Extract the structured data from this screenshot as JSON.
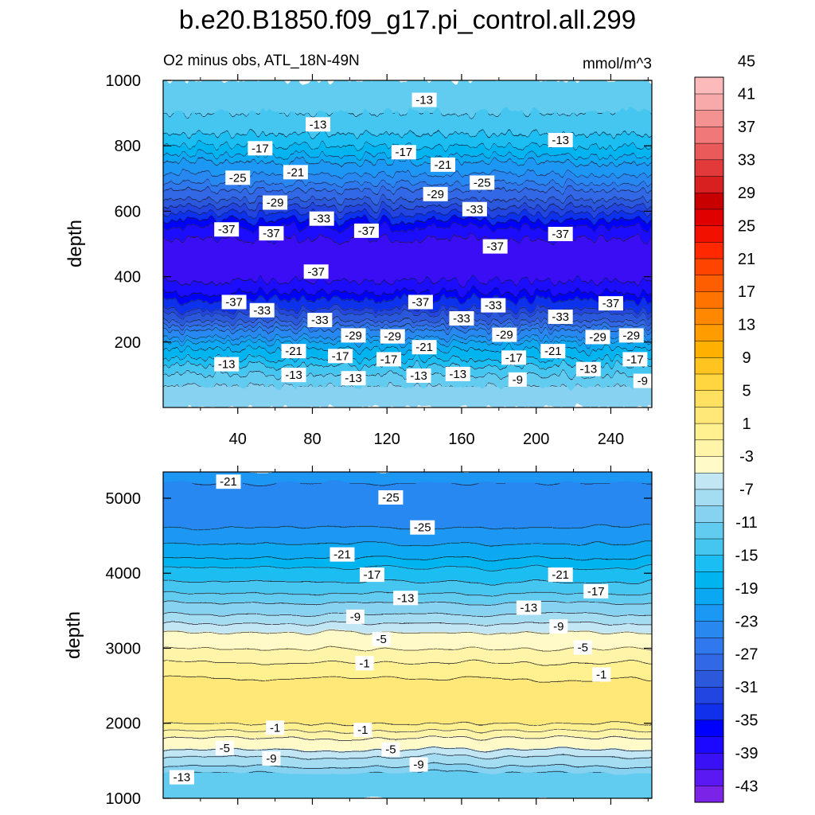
{
  "chart_data": {
    "type": "heatmap",
    "title": "b.e20.B1850.f09_g17.pi_control.all.299",
    "subtitle_left": "O2 minus obs, ATL_18N-49N",
    "subtitle_right": "mmol/m^3",
    "colorbar": {
      "levels": [
        -45,
        -43,
        -41,
        -39,
        -37,
        -35,
        -33,
        -31,
        -29,
        -27,
        -25,
        -23,
        -21,
        -19,
        -17,
        -15,
        -13,
        -11,
        -9,
        -7,
        -5,
        -3,
        -1,
        1,
        3,
        5,
        7,
        9,
        11,
        13,
        15,
        17,
        19,
        21,
        23,
        25,
        27,
        29,
        31,
        33,
        35,
        37,
        39,
        41,
        43,
        45
      ],
      "tick_labels": [
        "45",
        "41",
        "37",
        "33",
        "29",
        "25",
        "21",
        "17",
        "13",
        "9",
        "5",
        "1",
        "-3",
        "-7",
        "-11",
        "-15",
        "-19",
        "-23",
        "-27",
        "-31",
        "-35",
        "-39",
        "-43"
      ],
      "colors": [
        "#7b24e8",
        "#5a18f2",
        "#3a10f5",
        "#1c08ff",
        "#0000ff",
        "#1030ec",
        "#2244e0",
        "#2c58dc",
        "#3068e6",
        "#2f78ee",
        "#2888f0",
        "#1b98f4",
        "#0aa8f2",
        "#00b4f0",
        "#1abef2",
        "#44c6f0",
        "#62ccf0",
        "#86d2f0",
        "#a4dcf2",
        "#c2e6f4",
        "#fffac8",
        "#fff4a8",
        "#fff090",
        "#ffe878",
        "#ffe060",
        "#ffd640",
        "#ffc420",
        "#ffb000",
        "#ff9c00",
        "#ff8800",
        "#ff7400",
        "#ff5e00",
        "#ff4400",
        "#ff2800",
        "#f21000",
        "#e00000",
        "#c80000",
        "#d82020",
        "#e23a3a",
        "#ea5a5a",
        "#f07878",
        "#f49292",
        "#f8aaaa",
        "#fcbaba"
      ]
    },
    "panels": [
      {
        "ylabel": "depth",
        "xlabel": "",
        "xlim": [
          0,
          262
        ],
        "ylim": [
          1000,
          0
        ],
        "xticks": [
          40,
          80,
          120,
          160,
          200,
          240
        ],
        "yticks": [
          200,
          400,
          600,
          800,
          1000
        ],
        "profile": {
          "depth": [
            0,
            50,
            100,
            150,
            200,
            250,
            300,
            350,
            400,
            450,
            500,
            550,
            600,
            650,
            700,
            750,
            800,
            850,
            900,
            1000
          ],
          "value": [
            -9,
            -10,
            -13,
            -17,
            -21,
            -27,
            -33,
            -37,
            -40,
            -41,
            -40,
            -37,
            -32,
            -28,
            -24,
            -21,
            -17,
            -14,
            -13,
            -13
          ]
        },
        "contour_labels": [
          {
            "text": "-13",
            "x": 34,
            "y": 130
          },
          {
            "text": "-13",
            "x": 70,
            "y": 97
          },
          {
            "text": "-13",
            "x": 102,
            "y": 87
          },
          {
            "text": "-13",
            "x": 137,
            "y": 95
          },
          {
            "text": "-13",
            "x": 158,
            "y": 100
          },
          {
            "text": "-9",
            "x": 190,
            "y": 83
          },
          {
            "text": "-13",
            "x": 228,
            "y": 115
          },
          {
            "text": "-9",
            "x": 257,
            "y": 79
          },
          {
            "text": "-21",
            "x": 70,
            "y": 170
          },
          {
            "text": "-17",
            "x": 95,
            "y": 155
          },
          {
            "text": "-17",
            "x": 121,
            "y": 145
          },
          {
            "text": "-21",
            "x": 140,
            "y": 182
          },
          {
            "text": "-17",
            "x": 188,
            "y": 150
          },
          {
            "text": "-21",
            "x": 209,
            "y": 170
          },
          {
            "text": "-17",
            "x": 253,
            "y": 145
          },
          {
            "text": "-29",
            "x": 102,
            "y": 218
          },
          {
            "text": "-29",
            "x": 123,
            "y": 215
          },
          {
            "text": "-33",
            "x": 84,
            "y": 265
          },
          {
            "text": "-29",
            "x": 183,
            "y": 220
          },
          {
            "text": "-29",
            "x": 233,
            "y": 213
          },
          {
            "text": "-29",
            "x": 251,
            "y": 218
          },
          {
            "text": "-37",
            "x": 38,
            "y": 320
          },
          {
            "text": "-33",
            "x": 53,
            "y": 295
          },
          {
            "text": "-37",
            "x": 138,
            "y": 320
          },
          {
            "text": "-33",
            "x": 160,
            "y": 270
          },
          {
            "text": "-33",
            "x": 177,
            "y": 310
          },
          {
            "text": "-33",
            "x": 213,
            "y": 275
          },
          {
            "text": "-37",
            "x": 240,
            "y": 316
          },
          {
            "text": "-37",
            "x": 82,
            "y": 413
          },
          {
            "text": "-37",
            "x": 178,
            "y": 490
          },
          {
            "text": "-37",
            "x": 213,
            "y": 528
          },
          {
            "text": "-37",
            "x": 34,
            "y": 542
          },
          {
            "text": "-37",
            "x": 58,
            "y": 530
          },
          {
            "text": "-33",
            "x": 85,
            "y": 575
          },
          {
            "text": "-37",
            "x": 109,
            "y": 538
          },
          {
            "text": "-29",
            "x": 60,
            "y": 624
          },
          {
            "text": "-33",
            "x": 167,
            "y": 604
          },
          {
            "text": "-29",
            "x": 146,
            "y": 650
          },
          {
            "text": "-25",
            "x": 40,
            "y": 700
          },
          {
            "text": "-21",
            "x": 71,
            "y": 717
          },
          {
            "text": "-25",
            "x": 171,
            "y": 685
          },
          {
            "text": "-21",
            "x": 150,
            "y": 740
          },
          {
            "text": "-17",
            "x": 52,
            "y": 790
          },
          {
            "text": "-17",
            "x": 129,
            "y": 778
          },
          {
            "text": "-13",
            "x": 213,
            "y": 815
          },
          {
            "text": "-13",
            "x": 83,
            "y": 863
          },
          {
            "text": "-13",
            "x": 140,
            "y": 938
          }
        ]
      },
      {
        "ylabel": "depth",
        "xlabel": "",
        "xlim": [
          0,
          262
        ],
        "ylim": [
          5350,
          1000
        ],
        "xticks": [
          40,
          80,
          120,
          160,
          200,
          240
        ],
        "yticks": [
          1000,
          2000,
          3000,
          4000,
          5000
        ],
        "profile": {
          "depth": [
            1000,
            1200,
            1400,
            1600,
            1800,
            2000,
            2200,
            2400,
            2600,
            2800,
            3000,
            3200,
            3400,
            3600,
            3800,
            4000,
            4200,
            4400,
            4600,
            4800,
            5000,
            5200,
            5350
          ],
          "value": [
            -13,
            -13,
            -10,
            -6,
            -3,
            1,
            2,
            2,
            1,
            -1,
            -3,
            -5,
            -8,
            -11,
            -14,
            -16,
            -19,
            -21,
            -23,
            -25,
            -25,
            -23,
            -21
          ]
        },
        "contour_labels": [
          {
            "text": "-13",
            "x": 10,
            "y": 1270
          },
          {
            "text": "-9",
            "x": 58,
            "y": 1520
          },
          {
            "text": "-5",
            "x": 33,
            "y": 1660
          },
          {
            "text": "-1",
            "x": 60,
            "y": 1930
          },
          {
            "text": "-1",
            "x": 107,
            "y": 1900
          },
          {
            "text": "-5",
            "x": 122,
            "y": 1640
          },
          {
            "text": "-9",
            "x": 137,
            "y": 1440
          },
          {
            "text": "-1",
            "x": 108,
            "y": 2790
          },
          {
            "text": "-1",
            "x": 235,
            "y": 2640
          },
          {
            "text": "-5",
            "x": 117,
            "y": 3110
          },
          {
            "text": "-5",
            "x": 225,
            "y": 3000
          },
          {
            "text": "-9",
            "x": 103,
            "y": 3410
          },
          {
            "text": "-9",
            "x": 212,
            "y": 3280
          },
          {
            "text": "-13",
            "x": 130,
            "y": 3660
          },
          {
            "text": "-13",
            "x": 196,
            "y": 3530
          },
          {
            "text": "-17",
            "x": 112,
            "y": 3970
          },
          {
            "text": "-17",
            "x": 232,
            "y": 3750
          },
          {
            "text": "-21",
            "x": 96,
            "y": 4240
          },
          {
            "text": "-21",
            "x": 213,
            "y": 3970
          },
          {
            "text": "-25",
            "x": 139,
            "y": 4600
          },
          {
            "text": "-25",
            "x": 122,
            "y": 5000
          },
          {
            "text": "-21",
            "x": 35,
            "y": 5210
          }
        ]
      }
    ]
  }
}
